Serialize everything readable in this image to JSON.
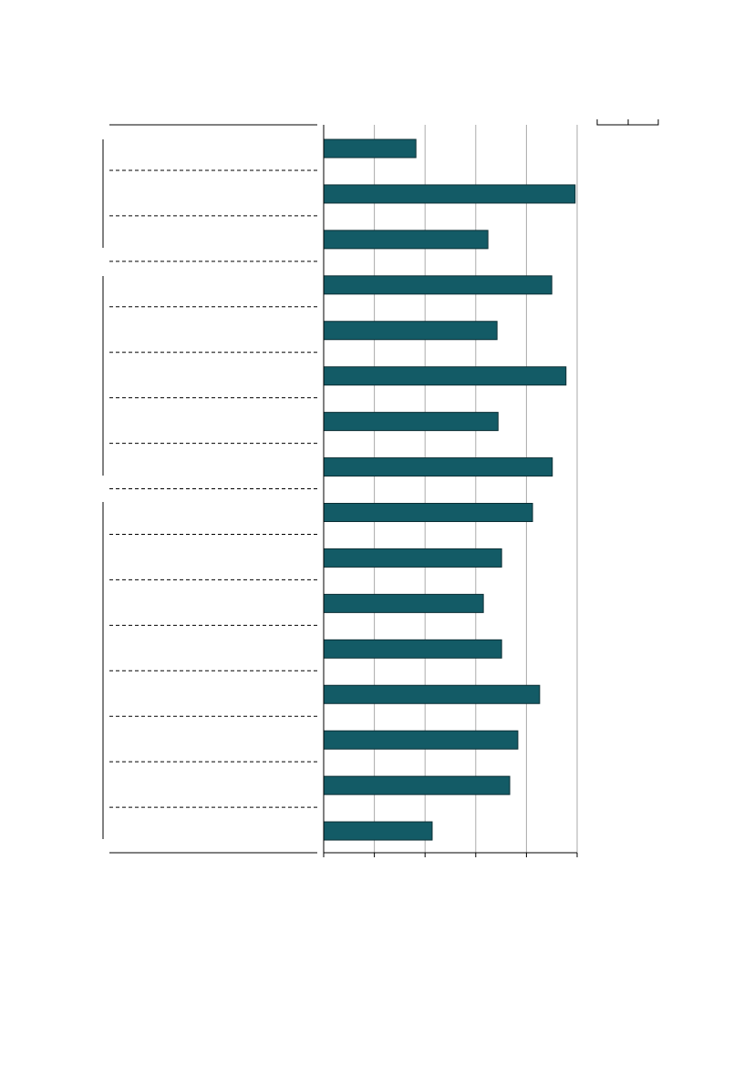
{
  "chart_data": {
    "type": "barh",
    "categories": [
      null,
      null,
      null,
      null,
      null,
      null,
      null,
      null,
      null,
      null,
      null,
      null,
      null,
      null,
      null,
      null
    ],
    "values": [
      1.82,
      4.96,
      3.24,
      4.5,
      3.42,
      4.78,
      3.44,
      4.51,
      4.12,
      3.51,
      3.15,
      3.51,
      4.26,
      3.83,
      3.67,
      2.14
    ],
    "color": "#135b66",
    "xlim": [
      0,
      5
    ],
    "xticks": [
      0,
      1,
      2,
      3,
      4,
      5
    ],
    "grid": true
  }
}
